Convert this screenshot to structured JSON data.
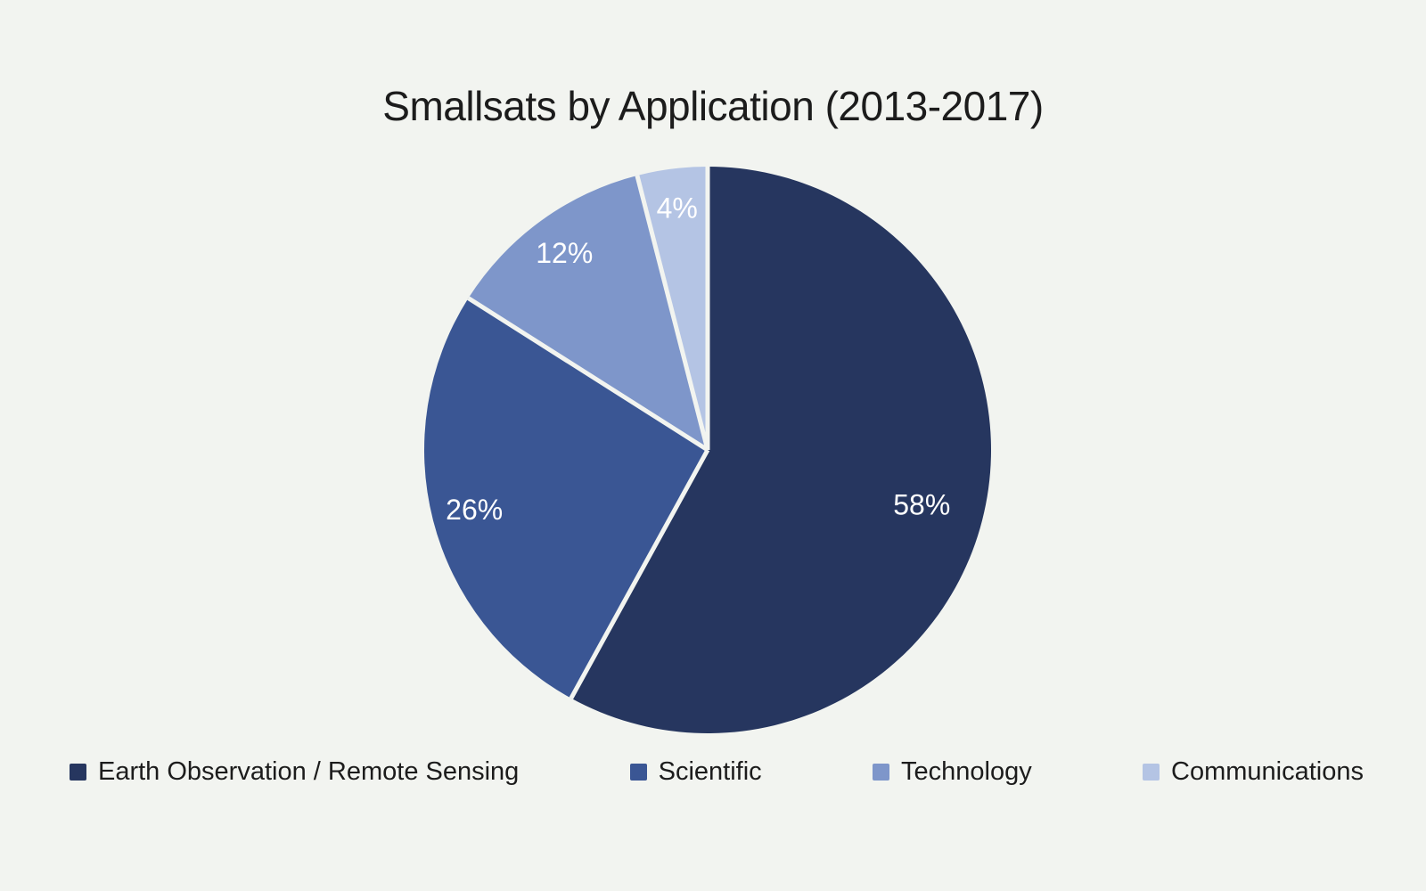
{
  "chart_data": {
    "type": "pie",
    "title": "Smallsats by Application (2013-2017)",
    "slices": [
      {
        "label": "Earth Observation / Remote Sensing",
        "value": 58,
        "display_label": "58%",
        "color": "#26365f",
        "label_r_frac": 0.78
      },
      {
        "label": "Scientific",
        "value": 26,
        "display_label": "26%",
        "color": "#3a5694",
        "label_r_frac": 0.85
      },
      {
        "label": "Technology",
        "value": 12,
        "display_label": "12%",
        "color": "#7e96ca",
        "label_r_frac": 0.86
      },
      {
        "label": "Communications",
        "value": 4,
        "display_label": "4%",
        "color": "#b4c4e4",
        "label_r_frac": 0.86
      }
    ],
    "start_angle_deg": 0,
    "direction": "clockwise",
    "legend_position": "bottom",
    "slice_label_color": "#ffffff",
    "separator_color": "#f2f4f0",
    "background_color": "#f2f4f0",
    "title_color": "#1c1c1c"
  }
}
